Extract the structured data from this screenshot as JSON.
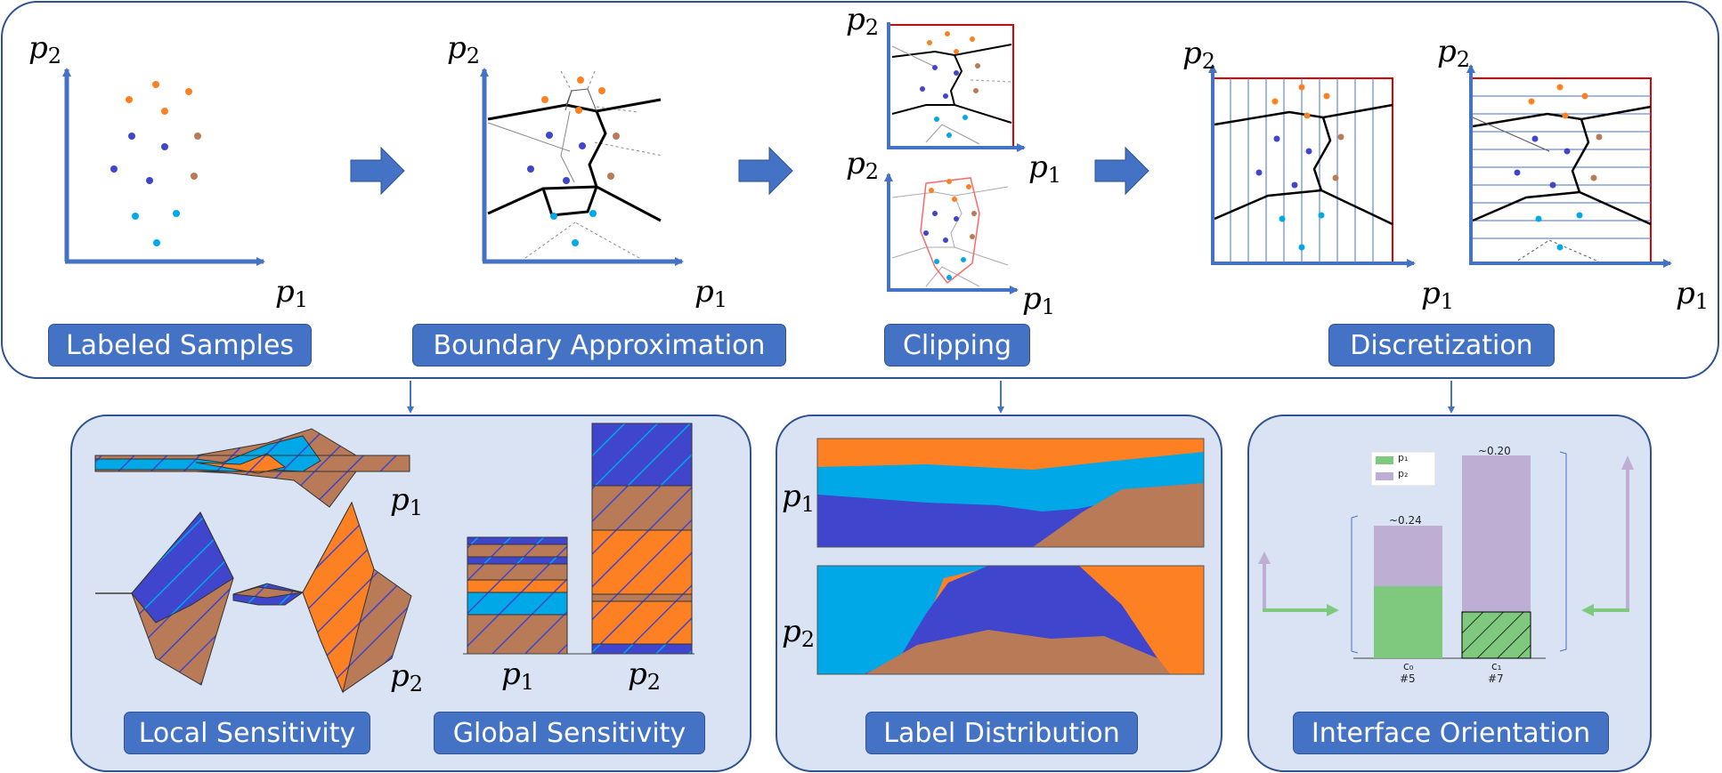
{
  "stages": {
    "labeled_samples": "Labeled Samples",
    "boundary_approximation": "Boundary Approximation",
    "clipping": "Clipping",
    "discretization": "Discretization"
  },
  "analyses": {
    "local_sensitivity": "Local Sensitivity",
    "global_sensitivity": "Global Sensitivity",
    "label_distribution": "Label Distribution",
    "interface_orientation": "Interface Orientation"
  },
  "axes": {
    "p": "p",
    "sub1": "1",
    "sub2": "2"
  },
  "orientation_chart": {
    "legend": [
      "p₁",
      "p₂"
    ],
    "bars": [
      {
        "category": "c₀",
        "count": "#5",
        "top_label": "~0.24",
        "p1_share": 0.45,
        "p2_share": 0.55
      },
      {
        "category": "c₁",
        "count": "#7",
        "top_label": "~0.20",
        "p1_share": 0.2,
        "p2_share": 0.8
      }
    ]
  },
  "colors": {
    "accent": "#4472c4",
    "panel_fill": "#dae3f3",
    "orange": "#fd8023",
    "blue_dark": "#3f45cc",
    "blue_light": "#00a8e7",
    "brown": "#b87a57",
    "green": "#7fc97f",
    "lavender": "#beaed4"
  }
}
